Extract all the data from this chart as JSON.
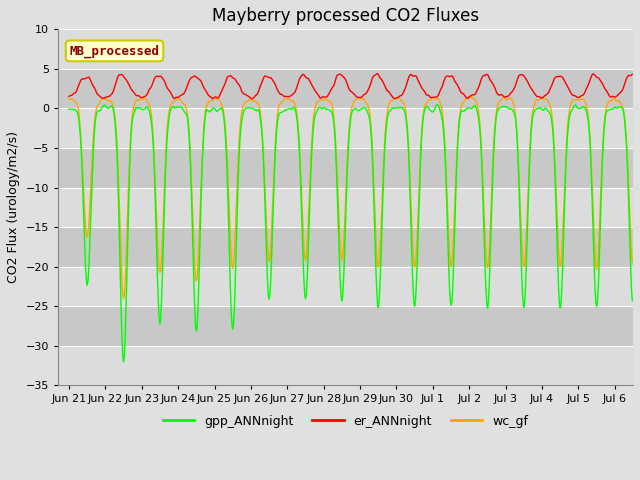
{
  "title": "Mayberry processed CO2 Fluxes",
  "ylabel": "CO2 Flux (urology/m2/s)",
  "xlim_start": -0.3,
  "xlim_end": 15.5,
  "ylim": [
    -35,
    10
  ],
  "yticks": [
    -35,
    -30,
    -25,
    -20,
    -15,
    -10,
    -5,
    0,
    5,
    10
  ],
  "xtick_labels": [
    "Jun 21",
    "Jun 22",
    "Jun 23",
    "Jun 24",
    "Jun 25",
    "Jun 26",
    "Jun 27",
    "Jun 28",
    "Jun 29",
    "Jun 30",
    "Jul 1",
    "Jul 2",
    "Jul 3",
    "Jul 4",
    "Jul 5",
    "Jul 6"
  ],
  "xtick_positions": [
    0,
    1,
    2,
    3,
    4,
    5,
    6,
    7,
    8,
    9,
    10,
    11,
    12,
    13,
    14,
    15
  ],
  "legend_labels": [
    "gpp_ANNnight",
    "er_ANNnight",
    "wc_gf"
  ],
  "legend_colors": [
    "#00FF00",
    "#FF0000",
    "#FFA500"
  ],
  "line_colors": [
    "#00FF00",
    "#FF0000",
    "#FFA500"
  ],
  "inset_label": "MB_processed",
  "inset_text_color": "#8B0000",
  "inset_bg_color": "#FFFFCC",
  "inset_border_color": "#CCCC00",
  "fig_bg_color": "#E0E0E0",
  "plot_bg_color": "#D3D3D3",
  "grid_color": "#FFFFFF",
  "band_color_light": "#DCDCDC",
  "band_color_dark": "#C8C8C8",
  "title_fontsize": 12,
  "axis_fontsize": 9,
  "tick_fontsize": 8,
  "legend_fontsize": 9
}
